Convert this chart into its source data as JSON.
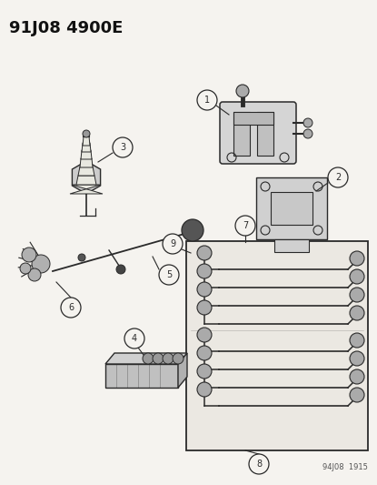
{
  "title": "91J08 4900E",
  "footer": "94J08  1915",
  "bg_color": "#f5f3ef",
  "line_color": "#2a2a2a",
  "fig_w": 4.15,
  "fig_h": 5.33,
  "dpi": 100
}
